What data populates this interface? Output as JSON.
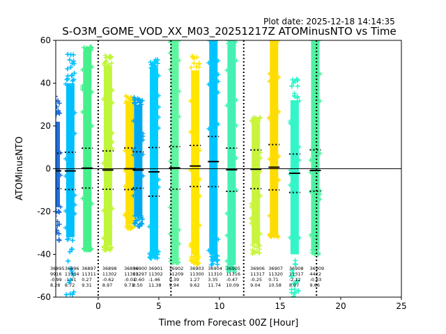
{
  "plot_date": "Plot date: 2025-12-18 14:14:35",
  "chart_data": {
    "type": "scatter",
    "title": "S-O3M_GOME_VOD_XX_M03_20251217Z ATOMinusNTO vs Time",
    "xlabel": "Time from Forecast 00Z [Hour]",
    "ylabel": "ATOMinusNTO",
    "xlim": [
      -3.5,
      25
    ],
    "ylim": [
      -60,
      60
    ],
    "xticks": [
      0,
      5,
      10,
      15,
      20,
      25
    ],
    "yticks": [
      -60,
      -40,
      -20,
      0,
      20,
      40,
      60
    ],
    "vlines": [
      0,
      6,
      12,
      18
    ],
    "hline": 0,
    "groups": [
      {
        "id": "36895",
        "n": "9916",
        "mean": "-0.99",
        "std": "8.28",
        "x": -3.5,
        "color": "#1e6fe0",
        "lo": -18,
        "hi": 22,
        "pmin": -35,
        "pmax": 35
      },
      {
        "id": "36896",
        "n": "11334",
        "mean": "-1.01",
        "std": "8.72",
        "x": -2.3,
        "color": "#00bfff",
        "lo": -32,
        "hi": 40,
        "pmin": -60,
        "pmax": 55
      },
      {
        "id": "36897",
        "n": "11311",
        "mean": "0.27",
        "std": "9.31",
        "x": -0.9,
        "color": "#46f08c",
        "lo": -37,
        "hi": 55,
        "pmin": -38,
        "pmax": 57
      },
      {
        "id": "36898",
        "n": "11302",
        "mean": "-0.62",
        "std": "8.97",
        "x": 0.8,
        "color": "#c0f53a",
        "lo": -36,
        "hi": 48,
        "pmin": -38,
        "pmax": 53
      },
      {
        "id": "36899",
        "n": "11303",
        "mean": "-0.01",
        "std": "9.71",
        "x": 2.6,
        "color": "#ffe000",
        "lo": -26,
        "hi": 30,
        "pmin": -28,
        "pmax": 34
      },
      {
        "id": "36900",
        "n": "11297",
        "mean": "-0.60",
        "std": "8.50",
        "x": 3.3,
        "color": "#00a8f0",
        "lo": -22,
        "hi": 30,
        "pmin": -27,
        "pmax": 34
      },
      {
        "id": "36901",
        "n": "11302",
        "mean": "-1.46",
        "std": "11.38",
        "x": 4.6,
        "color": "#00ccff",
        "lo": -40,
        "hi": 47,
        "pmin": -42,
        "pmax": 51
      },
      {
        "id": "36902",
        "n": "11209",
        "mean": "0.39",
        "std": "9.94",
        "x": 6.3,
        "color": "#5ff5a0",
        "lo": -42,
        "hi": 59,
        "pmin": -44,
        "pmax": 60
      },
      {
        "id": "36903",
        "n": "11300",
        "mean": "1.27",
        "std": "9.62",
        "x": 8.0,
        "color": "#ffe600",
        "lo": -40,
        "hi": 46,
        "pmin": -45,
        "pmax": 53
      },
      {
        "id": "36904",
        "n": "11310",
        "mean": "3.35",
        "std": "11.74",
        "x": 9.5,
        "color": "#00c4ff",
        "lo": -40,
        "hi": 60,
        "pmin": -45,
        "pmax": 60
      },
      {
        "id": "36905",
        "n": "11316",
        "mean": "-0.47",
        "std": "10.09",
        "x": 11.0,
        "color": "#46f0b4",
        "lo": -45,
        "hi": 58,
        "pmin": -48,
        "pmax": 60
      },
      {
        "id": "36906",
        "n": "11317",
        "mean": "-0.25",
        "std": "9.04",
        "x": 13.0,
        "color": "#c8f53c",
        "lo": -35,
        "hi": 22,
        "pmin": -40,
        "pmax": 24
      },
      {
        "id": "36907",
        "n": "11320",
        "mean": "0.71",
        "std": "10.58",
        "x": 14.5,
        "color": "#ffdc00",
        "lo": -30,
        "hi": 60,
        "pmin": -32,
        "pmax": 60
      },
      {
        "id": "36908",
        "n": "11317",
        "mean": "-2.12",
        "std": "8.97",
        "x": 16.2,
        "color": "#32f5c8",
        "lo": -40,
        "hi": 32,
        "pmin": -60,
        "pmax": 42
      },
      {
        "id": "36909",
        "n": "4422",
        "mean": "-0.83",
        "std": "9.66",
        "x": 17.9,
        "color": "#50f0a0",
        "lo": -38,
        "hi": 60,
        "pmin": -40,
        "pmax": 60
      }
    ]
  }
}
